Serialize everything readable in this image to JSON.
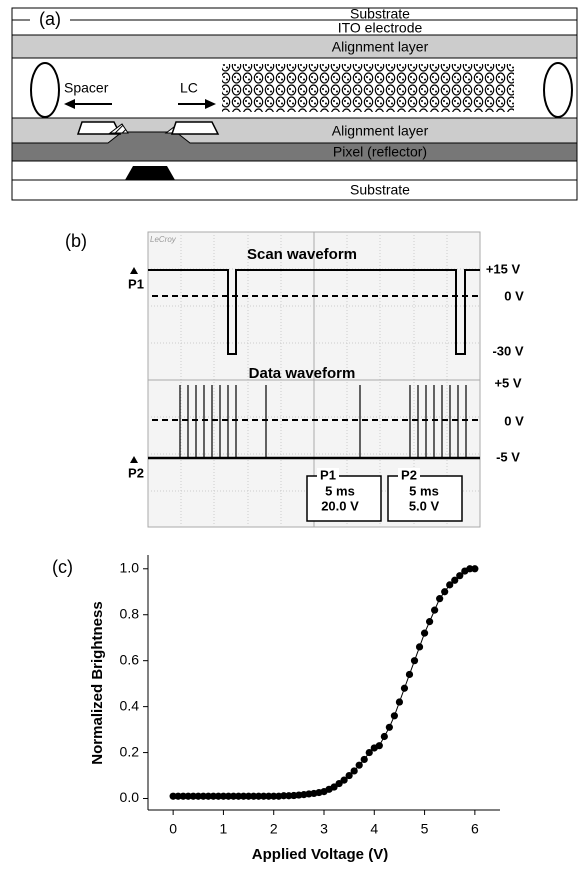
{
  "panel_a": {
    "label": "(a)",
    "layers": [
      "Substrate",
      "ITO electrode",
      "Alignment layer",
      "Alignment layer",
      "Pixel (reflector)",
      "Substrate"
    ],
    "spacer": "Spacer",
    "lc": "LC"
  },
  "panel_b": {
    "label": "(b)",
    "brand": "LeCroy",
    "scan_title": "Scan waveform",
    "data_title": "Data waveform",
    "right_labels": [
      "+15 V",
      "0 V",
      "-30 V",
      "+5 V",
      "0 V",
      "-5 V"
    ],
    "markers": [
      "P1",
      "P2"
    ],
    "boxes": [
      [
        "P1",
        "5 ms",
        "20.0 V"
      ],
      [
        "P2",
        "5 ms",
        "5.0 V"
      ]
    ]
  },
  "chart_data": {
    "type": "line",
    "panel_label": "(c)",
    "x_label": "Applied Voltage (V)",
    "y_label": "Normalized Brightness",
    "color": "#000000",
    "markers": true,
    "x": [
      0,
      0.1,
      0.2,
      0.3,
      0.4,
      0.5,
      0.6,
      0.7,
      0.8,
      0.9,
      1,
      1.1,
      1.2,
      1.3,
      1.4,
      1.5,
      1.6,
      1.7,
      1.8,
      1.9,
      2,
      2.1,
      2.2,
      2.3,
      2.4,
      2.5,
      2.6,
      2.7,
      2.8,
      2.9,
      3,
      3.1,
      3.2,
      3.3,
      3.4,
      3.5,
      3.6,
      3.7,
      3.8,
      3.9,
      4,
      4.1,
      4.2,
      4.3,
      4.4,
      4.5,
      4.6,
      4.7,
      4.8,
      4.9,
      5,
      5.1,
      5.2,
      5.3,
      5.4,
      5.5,
      5.6,
      5.7,
      5.8,
      5.9,
      6
    ],
    "values": [
      0.01,
      0.01,
      0.01,
      0.01,
      0.01,
      0.01,
      0.01,
      0.01,
      0.01,
      0.01,
      0.01,
      0.01,
      0.01,
      0.01,
      0.01,
      0.01,
      0.01,
      0.01,
      0.01,
      0.01,
      0.01,
      0.01,
      0.012,
      0.012,
      0.013,
      0.015,
      0.017,
      0.02,
      0.022,
      0.026,
      0.03,
      0.04,
      0.05,
      0.065,
      0.08,
      0.1,
      0.12,
      0.145,
      0.17,
      0.2,
      0.22,
      0.23,
      0.27,
      0.31,
      0.36,
      0.42,
      0.48,
      0.54,
      0.6,
      0.66,
      0.72,
      0.77,
      0.82,
      0.87,
      0.9,
      0.93,
      0.95,
      0.97,
      0.99,
      1.0,
      1.0
    ],
    "xlim": [
      -0.5,
      6.5
    ],
    "ylim": [
      -0.05,
      1.06
    ],
    "xticks": [
      0,
      1,
      2,
      3,
      4,
      5,
      6
    ],
    "yticks": [
      {
        "value": 0,
        "label": "0.0"
      },
      0.2,
      0.4,
      0.6,
      0.8,
      {
        "value": 1,
        "label": "1.0"
      }
    ]
  }
}
